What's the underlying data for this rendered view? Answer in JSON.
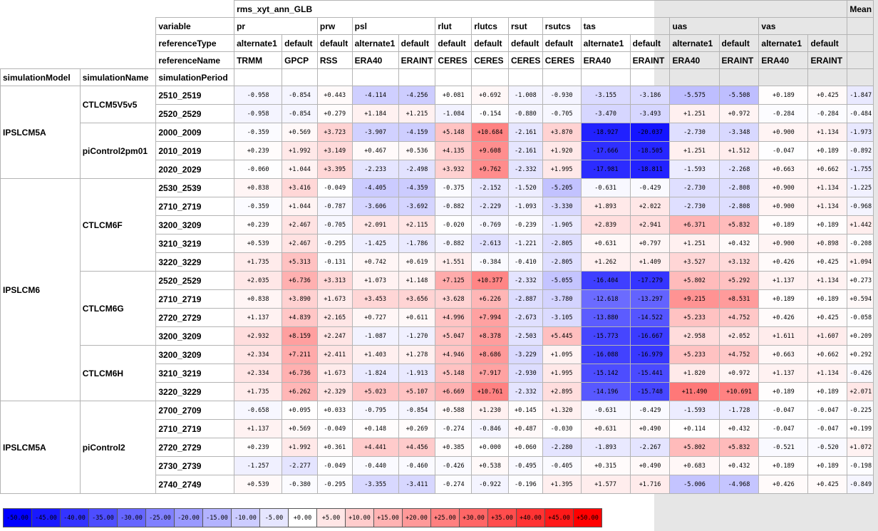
{
  "header": {
    "title": "rms_xyt_ann_GLB",
    "mean_label": "Mean",
    "row_labels": [
      "variable",
      "referenceType",
      "referenceName"
    ],
    "dim_labels": [
      "simulationModel",
      "simulationName",
      "simulationPeriod"
    ],
    "variables": [
      {
        "name": "pr",
        "span": 2
      },
      {
        "name": "prw",
        "span": 1
      },
      {
        "name": "psl",
        "span": 2
      },
      {
        "name": "rlut",
        "span": 1
      },
      {
        "name": "rlutcs",
        "span": 1
      },
      {
        "name": "rsut",
        "span": 1
      },
      {
        "name": "rsutcs",
        "span": 1
      },
      {
        "name": "tas",
        "span": 2
      },
      {
        "name": "uas",
        "span": 2
      },
      {
        "name": "vas",
        "span": 2
      }
    ],
    "reference_types": [
      "alternate1",
      "default",
      "default",
      "alternate1",
      "default",
      "default",
      "default",
      "default",
      "default",
      "alternate1",
      "default",
      "alternate1",
      "default",
      "alternate1",
      "default"
    ],
    "reference_names": [
      "TRMM",
      "GPCP",
      "RSS",
      "ERA40",
      "ERAINT",
      "CERES",
      "CERES",
      "CERES",
      "CERES",
      "ERA40",
      "ERAINT",
      "ERA40",
      "ERAINT",
      "ERA40",
      "ERAINT"
    ]
  },
  "groups": [
    {
      "model": "IPSLCM5A",
      "model_span": 5,
      "names": [
        {
          "name": "CTLCM5V5v5",
          "span": 2
        },
        {
          "name": "piControl2pm01",
          "span": 3
        }
      ]
    },
    {
      "model": "IPSLCM6",
      "model_span": 12,
      "names": [
        {
          "name": "CTLCM6F",
          "span": 5
        },
        {
          "name": "CTLCM6G",
          "span": 4
        },
        {
          "name": "CTLCM6H",
          "span": 3
        }
      ]
    },
    {
      "model": "IPSLCM5A",
      "model_span": 5,
      "names": [
        {
          "name": "piControl2",
          "span": 5
        }
      ]
    }
  ],
  "rows": [
    {
      "period": "2510_2519",
      "values": [
        "-0.958",
        "-0.854",
        "+0.443",
        "-4.114",
        "-4.256",
        "+0.081",
        "+0.692",
        "-1.008",
        "-0.930",
        "-3.155",
        "-3.186",
        "-5.575",
        "-5.508",
        "+0.189",
        "+0.425",
        "-1.847"
      ]
    },
    {
      "period": "2520_2529",
      "values": [
        "-0.958",
        "-0.854",
        "+0.279",
        "+1.184",
        "+1.215",
        "-1.084",
        "-0.154",
        "-0.880",
        "-0.705",
        "-3.470",
        "-3.493",
        "+1.251",
        "+0.972",
        "-0.284",
        "-0.284",
        "-0.484"
      ]
    },
    {
      "period": "2000_2009",
      "values": [
        "-0.359",
        "+0.569",
        "+3.723",
        "-3.907",
        "-4.159",
        "+5.148",
        "+10.684",
        "-2.161",
        "+3.870",
        "-18.927",
        "-20.037",
        "-2.730",
        "-3.348",
        "+0.900",
        "+1.134",
        "-1.973"
      ]
    },
    {
      "period": "2010_2019",
      "values": [
        "+0.239",
        "+1.992",
        "+3.149",
        "+0.467",
        "+0.536",
        "+4.135",
        "+9.608",
        "-2.161",
        "+1.920",
        "-17.666",
        "-18.505",
        "+1.251",
        "+1.512",
        "-0.047",
        "+0.189",
        "-0.892"
      ]
    },
    {
      "period": "2020_2029",
      "values": [
        "-0.060",
        "+1.044",
        "+3.395",
        "-2.233",
        "-2.498",
        "+3.932",
        "+9.762",
        "-2.332",
        "+1.995",
        "-17.981",
        "-18.811",
        "-1.593",
        "-2.268",
        "+0.663",
        "+0.662",
        "-1.755"
      ]
    },
    {
      "period": "2530_2539",
      "values": [
        "+0.838",
        "+3.416",
        "-0.049",
        "-4.405",
        "-4.359",
        "-0.375",
        "-2.152",
        "-1.520",
        "-5.205",
        "-0.631",
        "-0.429",
        "-2.730",
        "-2.808",
        "+0.900",
        "+1.134",
        "-1.225"
      ]
    },
    {
      "period": "2710_2719",
      "values": [
        "-0.359",
        "+1.044",
        "-0.787",
        "-3.606",
        "-3.692",
        "-0.882",
        "-2.229",
        "-1.093",
        "-3.330",
        "+1.893",
        "+2.022",
        "-2.730",
        "-2.808",
        "+0.900",
        "+1.134",
        "-0.968"
      ]
    },
    {
      "period": "3200_3209",
      "values": [
        "+0.239",
        "+2.467",
        "-0.705",
        "+2.091",
        "+2.115",
        "-0.020",
        "-0.769",
        "-0.239",
        "-1.905",
        "+2.839",
        "+2.941",
        "+6.371",
        "+5.832",
        "+0.189",
        "+0.189",
        "+1.442"
      ]
    },
    {
      "period": "3210_3219",
      "values": [
        "+0.539",
        "+2.467",
        "-0.295",
        "-1.425",
        "-1.786",
        "-0.882",
        "-2.613",
        "-1.221",
        "-2.805",
        "+0.631",
        "+0.797",
        "+1.251",
        "+0.432",
        "+0.900",
        "+0.898",
        "-0.208"
      ]
    },
    {
      "period": "3220_3229",
      "values": [
        "+1.735",
        "+5.313",
        "-0.131",
        "+0.742",
        "+0.619",
        "+1.551",
        "-0.384",
        "-0.410",
        "-2.805",
        "+1.262",
        "+1.409",
        "+3.527",
        "+3.132",
        "+0.426",
        "+0.425",
        "+1.094"
      ]
    },
    {
      "period": "2520_2529",
      "values": [
        "+2.035",
        "+6.736",
        "+3.313",
        "+1.073",
        "+1.148",
        "+7.125",
        "+10.377",
        "-2.332",
        "-5.055",
        "-16.404",
        "-17.279",
        "+5.802",
        "+5.292",
        "+1.137",
        "+1.134",
        "+0.273"
      ]
    },
    {
      "period": "2710_2719",
      "values": [
        "+0.838",
        "+3.890",
        "+1.673",
        "+3.453",
        "+3.656",
        "+3.628",
        "+6.226",
        "-2.887",
        "-3.780",
        "-12.618",
        "-13.297",
        "+9.215",
        "+8.531",
        "+0.189",
        "+0.189",
        "+0.594"
      ]
    },
    {
      "period": "2720_2729",
      "values": [
        "+1.137",
        "+4.839",
        "+2.165",
        "+0.727",
        "+0.611",
        "+4.996",
        "+7.994",
        "-2.673",
        "-3.105",
        "-13.880",
        "-14.522",
        "+5.233",
        "+4.752",
        "+0.426",
        "+0.425",
        "-0.058"
      ]
    },
    {
      "period": "3200_3209",
      "values": [
        "+2.932",
        "+8.159",
        "+2.247",
        "-1.087",
        "-1.270",
        "+5.047",
        "+8.378",
        "-2.503",
        "+5.445",
        "-15.773",
        "-16.667",
        "+2.958",
        "+2.052",
        "+1.611",
        "+1.607",
        "+0.209"
      ]
    },
    {
      "period": "3200_3209",
      "values": [
        "+2.334",
        "+7.211",
        "+2.411",
        "+1.403",
        "+1.278",
        "+4.946",
        "+8.686",
        "-3.229",
        "+1.095",
        "-16.088",
        "-16.979",
        "+5.233",
        "+4.752",
        "+0.663",
        "+0.662",
        "+0.292"
      ]
    },
    {
      "period": "3210_3219",
      "values": [
        "+2.334",
        "+6.736",
        "+1.673",
        "-1.824",
        "-1.913",
        "+5.148",
        "+7.917",
        "-2.930",
        "+1.995",
        "-15.142",
        "-15.441",
        "+1.820",
        "+0.972",
        "+1.137",
        "+1.134",
        "-0.426"
      ]
    },
    {
      "period": "3220_3229",
      "values": [
        "+1.735",
        "+6.262",
        "+2.329",
        "+5.023",
        "+5.107",
        "+6.669",
        "+10.761",
        "-2.332",
        "+2.895",
        "-14.196",
        "-15.748",
        "+11.490",
        "+10.691",
        "+0.189",
        "+0.189",
        "+2.071"
      ]
    },
    {
      "period": "2700_2709",
      "values": [
        "-0.658",
        "+0.095",
        "+0.033",
        "-0.795",
        "-0.854",
        "+0.588",
        "+1.230",
        "+0.145",
        "+1.320",
        "-0.631",
        "-0.429",
        "-1.593",
        "-1.728",
        "-0.047",
        "-0.047",
        "-0.225"
      ]
    },
    {
      "period": "2710_2719",
      "values": [
        "+1.137",
        "+0.569",
        "-0.049",
        "+0.148",
        "+0.269",
        "-0.274",
        "-0.846",
        "+0.487",
        "-0.030",
        "+0.631",
        "+0.490",
        "+0.114",
        "+0.432",
        "-0.047",
        "-0.047",
        "+0.199"
      ]
    },
    {
      "period": "2720_2729",
      "values": [
        "+0.239",
        "+1.992",
        "+0.361",
        "+4.441",
        "+4.456",
        "+0.385",
        "+0.000",
        "+0.060",
        "-2.280",
        "-1.893",
        "-2.267",
        "+5.802",
        "+5.832",
        "-0.521",
        "-0.520",
        "+1.072"
      ]
    },
    {
      "period": "2730_2739",
      "values": [
        "-1.257",
        "-2.277",
        "-0.049",
        "-0.440",
        "-0.460",
        "-0.426",
        "+0.538",
        "-0.495",
        "-0.405",
        "+0.315",
        "+0.490",
        "+0.683",
        "+0.432",
        "+0.189",
        "+0.189",
        "-0.198"
      ]
    },
    {
      "period": "2740_2749",
      "values": [
        "+0.539",
        "-0.380",
        "-0.295",
        "-3.355",
        "-3.411",
        "-0.274",
        "-0.922",
        "-0.196",
        "+1.395",
        "+1.577",
        "+1.716",
        "-5.006",
        "-4.968",
        "+0.426",
        "+0.425",
        "-0.849"
      ]
    }
  ],
  "colorbar": [
    "-50.00",
    "-45.00",
    "-40.00",
    "-35.00",
    "-30.00",
    "-25.00",
    "-20.00",
    "-15.00",
    "-10.00",
    "-5.00",
    "+0.00",
    "+5.00",
    "+10.00",
    "+15.00",
    "+20.00",
    "+25.00",
    "+30.00",
    "+35.00",
    "+40.00",
    "+45.00",
    "+50.00"
  ],
  "colors": {
    "negative": "#0000ff",
    "positive": "#ff0000",
    "neutral": "#ffffff",
    "gray_panel": "#e6e6e6"
  }
}
